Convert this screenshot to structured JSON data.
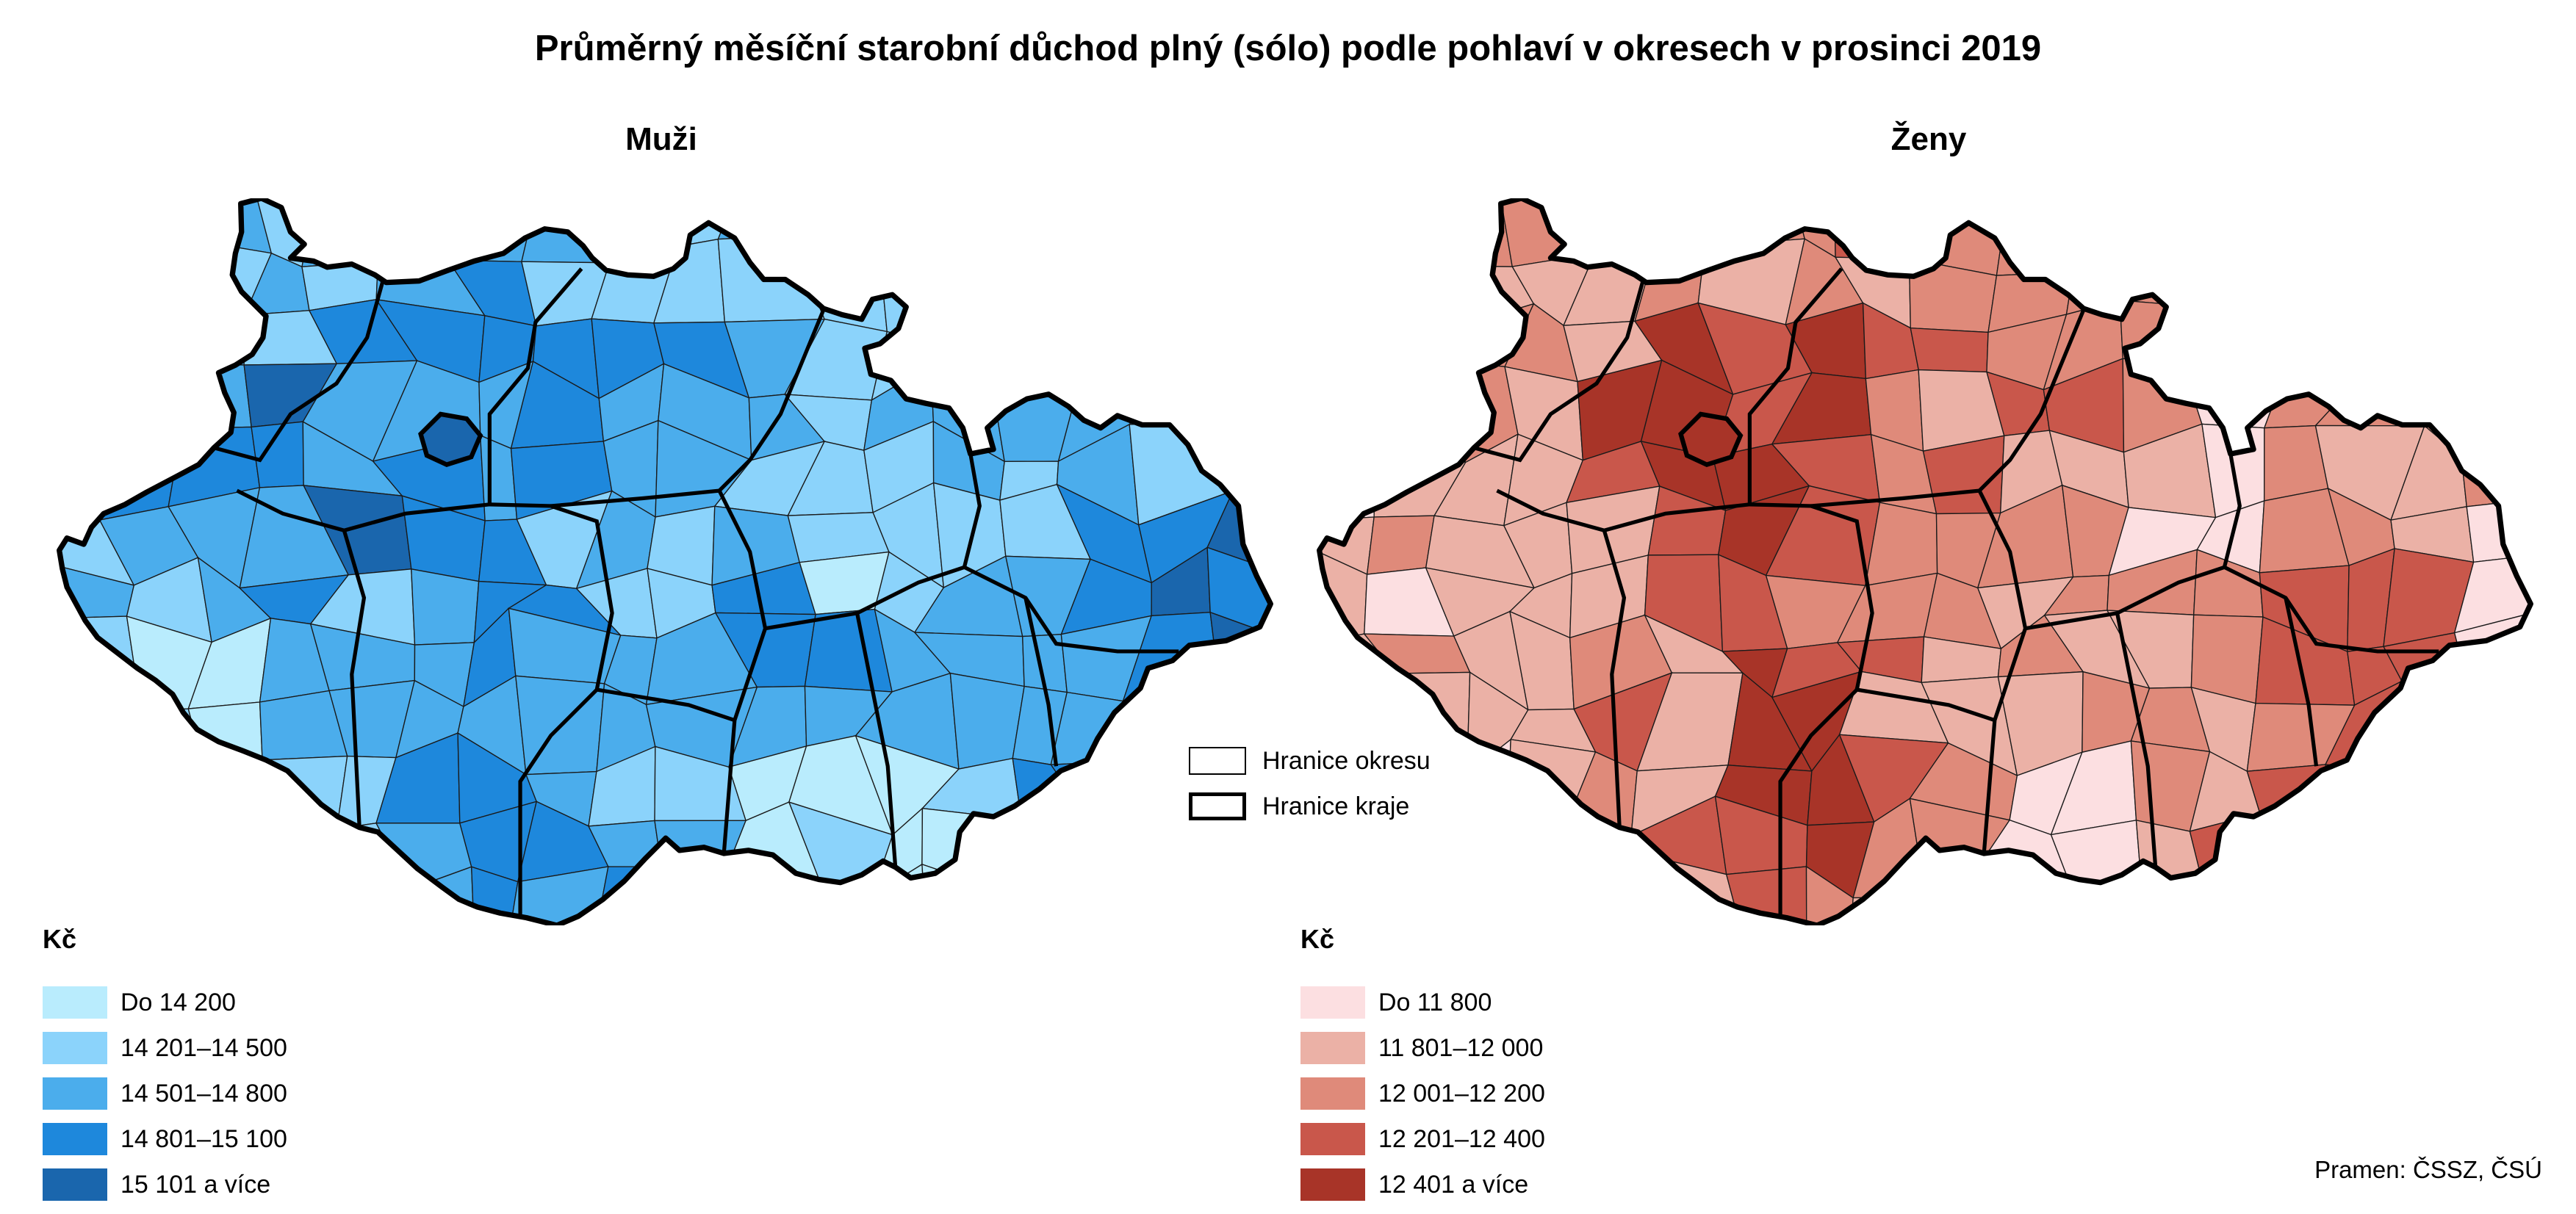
{
  "title": "Průměrný měsíční starobní důchod plný (sólo) podle pohlaví v okresech v prosinci 2019",
  "maps": [
    {
      "subtitle": "Muži",
      "legend_title": "Kč",
      "legend": [
        {
          "label": "Do 14 200",
          "color": "#b9ecfd"
        },
        {
          "label": "14 201–14 500",
          "color": "#8bd3fb"
        },
        {
          "label": "14 501–14 800",
          "color": "#4badec"
        },
        {
          "label": "14 801–15 100",
          "color": "#1e88dc"
        },
        {
          "label": "15 101 a více",
          "color": "#1a66ad"
        }
      ]
    },
    {
      "subtitle": "Ženy",
      "legend_title": "Kč",
      "legend": [
        {
          "label": "Do 11 800",
          "color": "#fcdfe1"
        },
        {
          "label": "11 801–12 000",
          "color": "#ebb1a6"
        },
        {
          "label": "12 001–12 200",
          "color": "#df8a7a"
        },
        {
          "label": "12 201–12 400",
          "color": "#c9574b"
        },
        {
          "label": "12 401 a více",
          "color": "#a83428"
        }
      ]
    }
  ],
  "border_legend": {
    "district": "Hranice okresu",
    "region": "Hranice kraje"
  },
  "source": "Pramen: ČSSZ, ČSÚ"
}
